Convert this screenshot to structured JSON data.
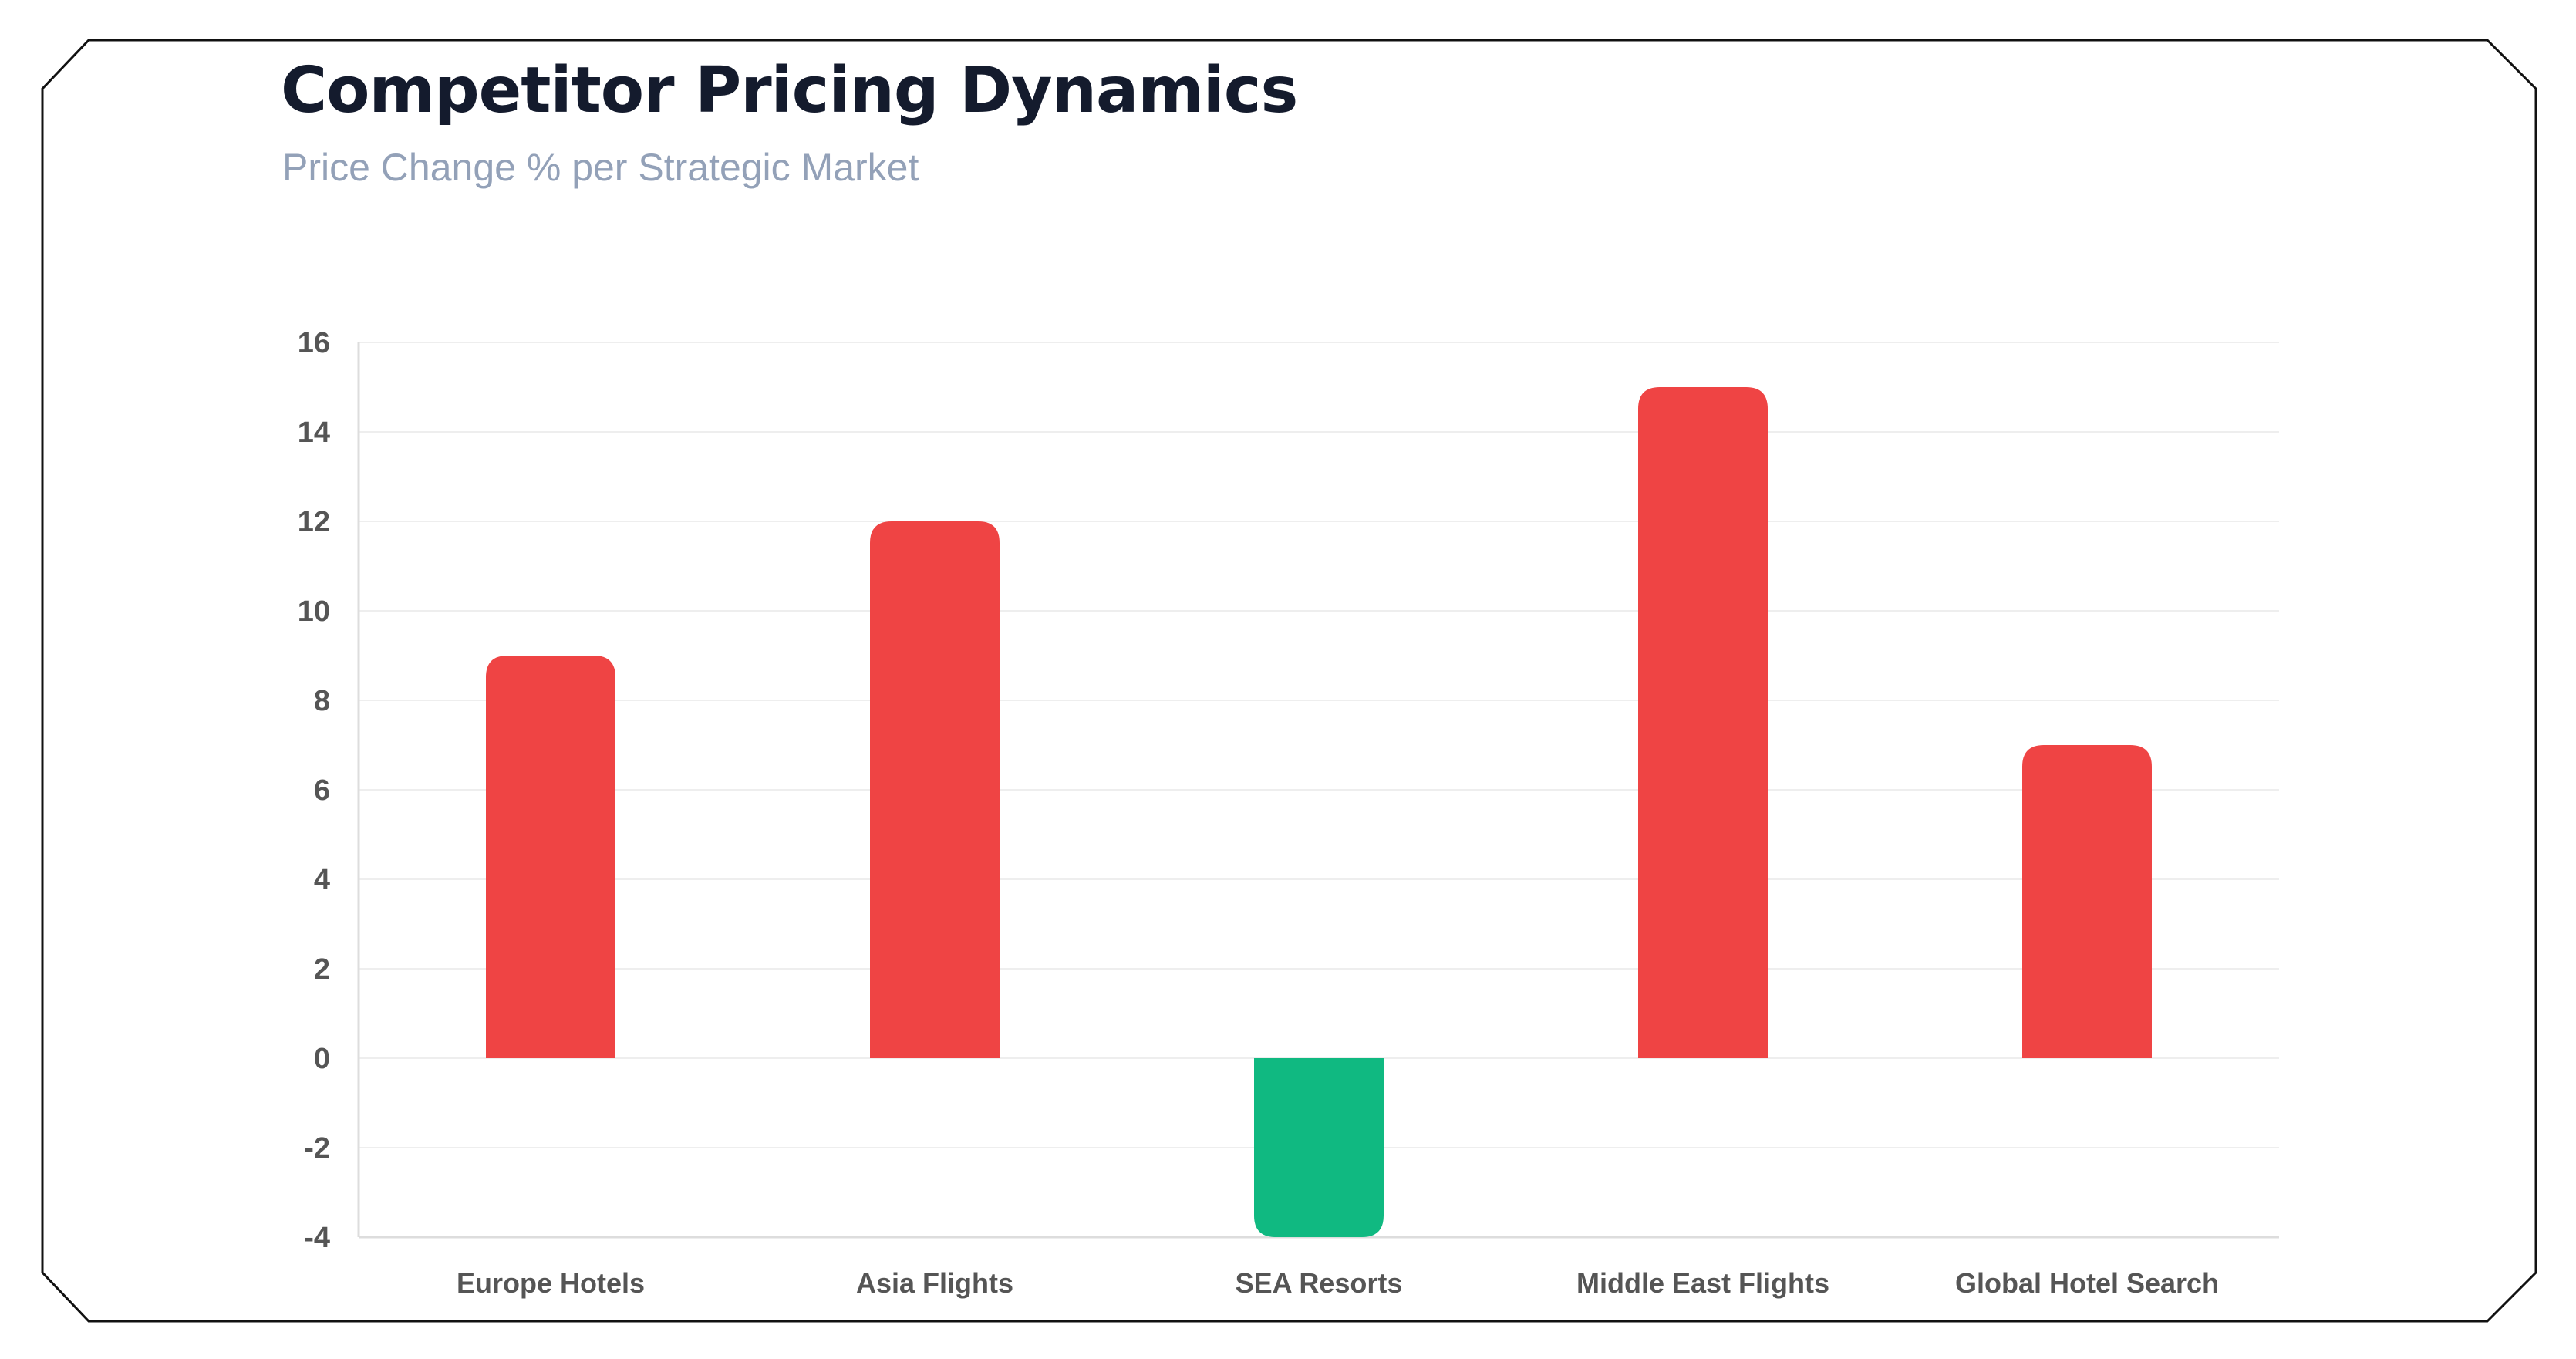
{
  "chart_data": {
    "type": "bar",
    "title": "Competitor Pricing Dynamics",
    "subtitle": "Price Change % per Strategic Market",
    "categories": [
      "Europe Hotels",
      "Asia Flights",
      "SEA Resorts",
      "Middle East Flights",
      "Global Hotel Search"
    ],
    "values": [
      9,
      12,
      -4,
      15,
      7
    ],
    "ylim": [
      -4,
      16
    ],
    "yticks": [
      "16",
      "14",
      "12",
      "10",
      "8",
      "6",
      "4",
      "2",
      "0",
      "-2",
      "-4"
    ],
    "grid": true,
    "legend": "none",
    "colors": {
      "positive": "#ef4444",
      "negative": "#10b981",
      "grid": "#eeeeee",
      "axis": "#dddddd"
    }
  }
}
